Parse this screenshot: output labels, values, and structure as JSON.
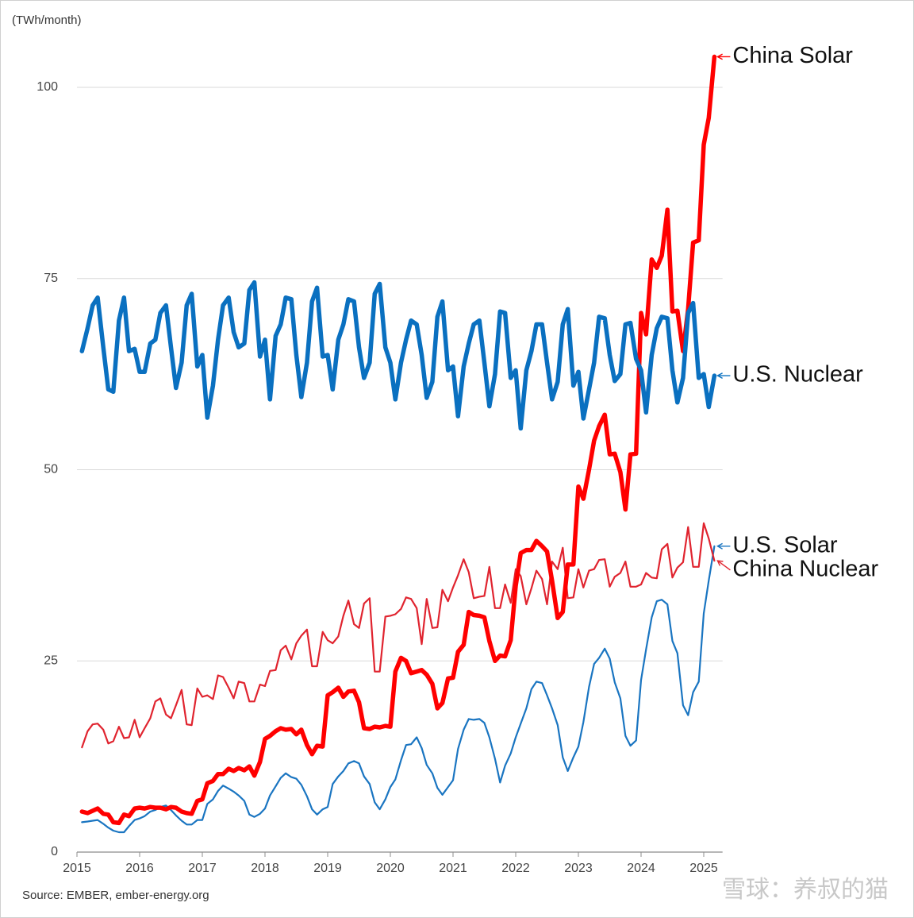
{
  "chart_data": {
    "type": "line",
    "y_label": "(TWh/month)",
    "source": "Source: EMBER, ember-energy.org",
    "watermark": "雪球：养叔的猫",
    "xlim": [
      2015,
      2025.3
    ],
    "xticks": [
      2015,
      2016,
      2017,
      2018,
      2019,
      2020,
      2021,
      2022,
      2023,
      2024,
      2025
    ],
    "ylim": [
      0,
      105
    ],
    "yticks": [
      0,
      25,
      50,
      75,
      100
    ],
    "grid": true,
    "x": [
      2015.08,
      2015.17,
      2015.25,
      2015.33,
      2015.42,
      2015.5,
      2015.58,
      2015.67,
      2015.75,
      2015.83,
      2015.92,
      2016,
      2016.08,
      2016.17,
      2016.25,
      2016.33,
      2016.42,
      2016.5,
      2016.58,
      2016.67,
      2016.75,
      2016.83,
      2016.92,
      2017,
      2017.08,
      2017.17,
      2017.25,
      2017.33,
      2017.42,
      2017.5,
      2017.58,
      2017.67,
      2017.75,
      2017.83,
      2017.92,
      2018,
      2018.08,
      2018.17,
      2018.25,
      2018.33,
      2018.42,
      2018.5,
      2018.58,
      2018.67,
      2018.75,
      2018.83,
      2018.92,
      2019,
      2019.08,
      2019.17,
      2019.25,
      2019.33,
      2019.42,
      2019.5,
      2019.58,
      2019.67,
      2019.75,
      2019.83,
      2019.92,
      2020,
      2020.08,
      2020.17,
      2020.25,
      2020.33,
      2020.42,
      2020.5,
      2020.58,
      2020.67,
      2020.75,
      2020.83,
      2020.92,
      2021,
      2021.08,
      2021.17,
      2021.25,
      2021.33,
      2021.42,
      2021.5,
      2021.58,
      2021.67,
      2021.75,
      2021.83,
      2021.92,
      2022,
      2022.08,
      2022.17,
      2022.25,
      2022.33,
      2022.42,
      2022.5,
      2022.58,
      2022.67,
      2022.75,
      2022.83,
      2022.92,
      2023,
      2023.08,
      2023.17,
      2023.25,
      2023.33,
      2023.42,
      2023.5,
      2023.58,
      2023.67,
      2023.75,
      2023.83,
      2023.92,
      2024,
      2024.08,
      2024.17,
      2024.25,
      2024.33,
      2024.42,
      2024.5,
      2024.58,
      2024.67,
      2024.75,
      2024.83,
      2024.92,
      2025,
      2025.08,
      2025.17
    ],
    "series": [
      {
        "name": "China Solar",
        "color": "#ff0000",
        "line_width": 5.5,
        "values": [
          5.3,
          5.1,
          5.4,
          5.7,
          5.0,
          4.9,
          3.9,
          3.8,
          4.9,
          4.7,
          5.7,
          5.8,
          5.7,
          5.9,
          5.8,
          5.8,
          5.6,
          5.9,
          5.8,
          5.3,
          5.1,
          5.0,
          6.7,
          6.9,
          9.0,
          9.3,
          10.2,
          10.2,
          10.9,
          10.6,
          11.0,
          10.7,
          11.2,
          10.0,
          11.8,
          14.8,
          15.2,
          15.8,
          16.2,
          16.0,
          16.1,
          15.4,
          16.0,
          14.0,
          12.8,
          13.9,
          13.8,
          20.5,
          20.9,
          21.5,
          20.3,
          21.0,
          21.1,
          19.6,
          16.2,
          16.1,
          16.4,
          16.3,
          16.5,
          16.4,
          23.6,
          25.4,
          25.0,
          23.4,
          23.6,
          23.8,
          23.2,
          22.0,
          18.8,
          19.5,
          22.7,
          22.8,
          26.2,
          27.1,
          31.4,
          31.0,
          30.9,
          30.7,
          27.6,
          25.0,
          25.7,
          25.6,
          27.7,
          34.8,
          39.1,
          39.5,
          39.5,
          40.7,
          40.0,
          39.3,
          35.5,
          30.6,
          31.4,
          37.6,
          37.6,
          47.8,
          46.2,
          50.0,
          53.8,
          55.7,
          57.2,
          52.0,
          52.1,
          49.7,
          44.8,
          52.0,
          52.1,
          70.5,
          67.7,
          77.5,
          76.4,
          78.0,
          84.0,
          70.7,
          70.8,
          65.5,
          71.0,
          79.7,
          80.0,
          92.5,
          96.0,
          104.0
        ]
      },
      {
        "name": "U.S. Nuclear",
        "color": "#0a70c0",
        "line_width": 5.5,
        "values": [
          65.5,
          68.5,
          71.5,
          72.5,
          66,
          60.5,
          60.2,
          69.5,
          72.5,
          65.5,
          65.8,
          62.8,
          62.8,
          66.5,
          67,
          70.5,
          71.5,
          66,
          60.7,
          64,
          71.5,
          73,
          63.5,
          65,
          56.8,
          61,
          67,
          71.5,
          72.5,
          68,
          66,
          66.5,
          73.5,
          74.5,
          64.8,
          67,
          59.2,
          67.5,
          69,
          72.5,
          72.3,
          65,
          59.5,
          64,
          72,
          73.8,
          64.8,
          65,
          60.5,
          67,
          69,
          72.3,
          72,
          66,
          62,
          64,
          73,
          74.3,
          66,
          64,
          59.2,
          64,
          67,
          69.5,
          69,
          65,
          59.4,
          61.5,
          70,
          72,
          63,
          63.5,
          57,
          63.5,
          66.5,
          69,
          69.5,
          64,
          58.3,
          62.5,
          70.7,
          70.5,
          62,
          63,
          55.4,
          63,
          65.5,
          69,
          69,
          64,
          59.2,
          61.5,
          69,
          71,
          61,
          62.8,
          56.7,
          60.5,
          64,
          70,
          69.8,
          65,
          61.6,
          62.5,
          69,
          69.2,
          64.5,
          63,
          57.5,
          65,
          68.5,
          70,
          69.8,
          63,
          58.8,
          62,
          70.5,
          71.8,
          62,
          62.5,
          58.2,
          62.3
        ]
      },
      {
        "name": "U.S. Solar",
        "color": "#1a75c1",
        "line_width": 2.2,
        "values": [
          3.9,
          4.0,
          4.1,
          4.2,
          3.7,
          3.2,
          2.8,
          2.6,
          2.6,
          3.4,
          4.2,
          4.4,
          4.7,
          5.3,
          5.5,
          5.9,
          6.1,
          5.5,
          4.8,
          4.1,
          3.6,
          3.6,
          4.2,
          4.2,
          6.3,
          6.9,
          8.0,
          8.7,
          8.3,
          7.9,
          7.4,
          6.7,
          4.9,
          4.6,
          5.0,
          5.7,
          7.4,
          8.6,
          9.7,
          10.3,
          9.8,
          9.6,
          8.8,
          7.3,
          5.6,
          4.9,
          5.6,
          5.9,
          8.9,
          9.9,
          10.6,
          11.6,
          11.9,
          11.6,
          9.9,
          8.9,
          6.5,
          5.6,
          6.9,
          8.5,
          9.5,
          12.0,
          14.0,
          14.1,
          15.0,
          13.6,
          11.4,
          10.3,
          8.4,
          7.5,
          8.5,
          9.4,
          13.5,
          16.0,
          17.4,
          17.3,
          17.4,
          16.9,
          15.0,
          12.2,
          9.1,
          11.3,
          12.9,
          15.0,
          16.8,
          18.8,
          21.3,
          22.3,
          22.1,
          20.5,
          18.8,
          16.6,
          12.4,
          10.6,
          12.4,
          13.8,
          17.0,
          21.6,
          24.6,
          25.4,
          26.6,
          25.3,
          22.2,
          20.1,
          15.2,
          13.9,
          14.6,
          22.5,
          26.5,
          30.7,
          32.8,
          33.0,
          32.4,
          27.6,
          26.0,
          19.2,
          17.9,
          20.9,
          22.3,
          31.2,
          35.5,
          40.0
        ]
      },
      {
        "name": "China Nuclear",
        "color": "#e0242f",
        "line_width": 2.2,
        "values": [
          13.7,
          15.8,
          16.7,
          16.8,
          16.0,
          14.2,
          14.5,
          16.4,
          14.9,
          15.0,
          17.3,
          15.0,
          16.2,
          17.5,
          19.7,
          20.1,
          18.0,
          17.5,
          19.2,
          21.2,
          16.7,
          16.6,
          21.4,
          20.3,
          20.5,
          20.0,
          23.1,
          22.9,
          21.5,
          20.1,
          22.3,
          22.1,
          19.7,
          19.7,
          21.9,
          21.7,
          23.7,
          23.8,
          26.4,
          27.0,
          25.2,
          27.3,
          28.3,
          29.1,
          24.3,
          24.3,
          28.8,
          27.7,
          27.3,
          28.2,
          30.9,
          32.9,
          29.8,
          29.3,
          32.5,
          33.2,
          23.6,
          23.6,
          30.8,
          30.9,
          31.1,
          31.8,
          33.3,
          33.1,
          31.9,
          27.2,
          33.1,
          29.3,
          29.4,
          34.3,
          32.8,
          34.6,
          36.2,
          38.3,
          36.6,
          33.2,
          33.4,
          33.5,
          37.3,
          31.9,
          31.9,
          35.0,
          32.6,
          37.0,
          36.1,
          32.4,
          34.5,
          36.8,
          35.7,
          32.4,
          38.0,
          37.0,
          39.8,
          33.2,
          33.3,
          37.0,
          34.6,
          36.8,
          37.0,
          38.2,
          38.3,
          34.7,
          36.0,
          36.5,
          38.0,
          34.7,
          34.7,
          35.0,
          36.5,
          35.9,
          35.8,
          39.6,
          40.3,
          35.9,
          37.2,
          37.9,
          42.5,
          37.3,
          37.3,
          43.0,
          41.0,
          38.1
        ]
      }
    ]
  }
}
